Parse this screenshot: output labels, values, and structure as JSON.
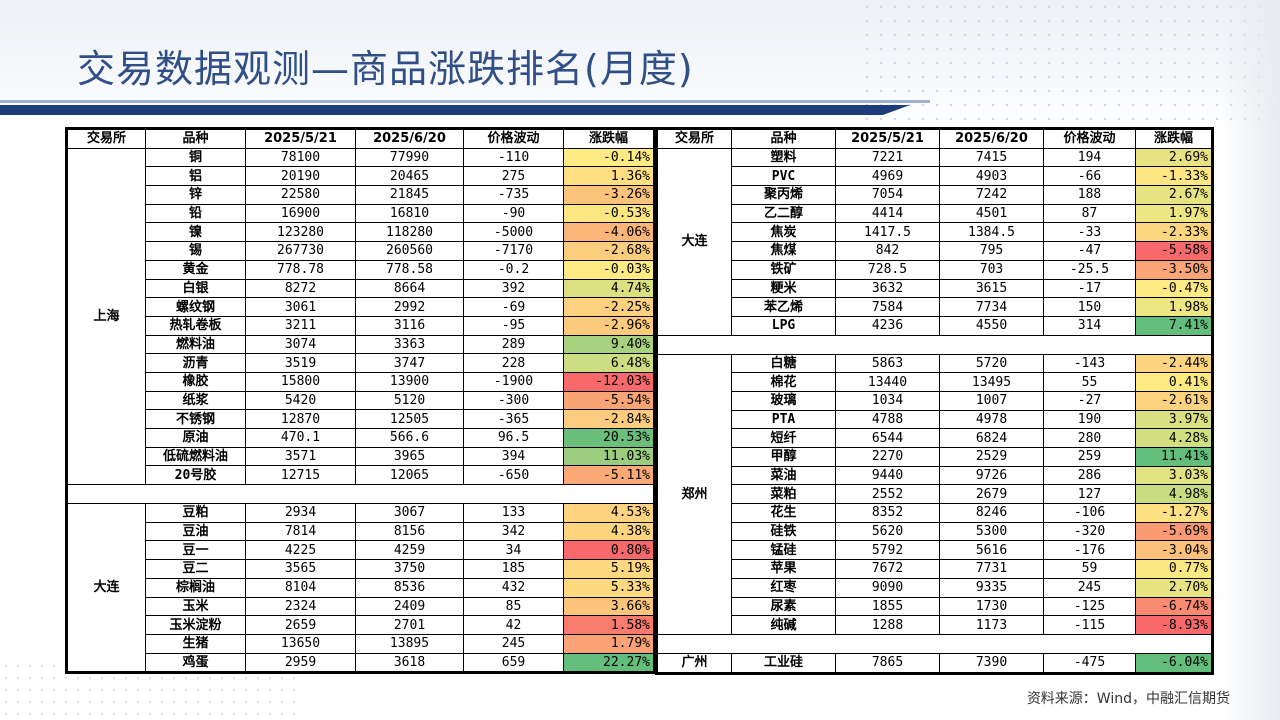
{
  "title": "交易数据观测—商品涨跌排名(月度)",
  "source": "资料来源：Wind，中融汇信期货",
  "headers": [
    "交易所",
    "品种",
    "2025/5/21",
    "2025/6/20",
    "价格波动",
    "涨跌幅"
  ],
  "left": [
    {
      "exchange": "上海",
      "rows": [
        {
          "name": "铜",
          "p1": "78100",
          "p2": "77990",
          "chg": "-110",
          "pct": "-0.14%",
          "color": "#ffeb84"
        },
        {
          "name": "铝",
          "p1": "20190",
          "p2": "20465",
          "chg": "275",
          "pct": "1.36%",
          "color": "#ffdf81"
        },
        {
          "name": "锌",
          "p1": "22580",
          "p2": "21845",
          "chg": "-735",
          "pct": "-3.26%",
          "color": "#fcc47b"
        },
        {
          "name": "铅",
          "p1": "16900",
          "p2": "16810",
          "chg": "-90",
          "pct": "-0.53%",
          "color": "#fee683"
        },
        {
          "name": "镍",
          "p1": "123280",
          "p2": "118280",
          "chg": "-5000",
          "pct": "-4.06%",
          "color": "#fbb578"
        },
        {
          "name": "锡",
          "p1": "267730",
          "p2": "260560",
          "chg": "-7170",
          "pct": "-2.68%",
          "color": "#fdcd7e"
        },
        {
          "name": "黄金",
          "p1": "778.78",
          "p2": "778.58",
          "chg": "-0.2",
          "pct": "-0.03%",
          "color": "#ffeb84"
        },
        {
          "name": "白银",
          "p1": "8272",
          "p2": "8664",
          "chg": "392",
          "pct": "4.74%",
          "color": "#dbe081"
        },
        {
          "name": "螺纹钢",
          "p1": "3061",
          "p2": "2992",
          "chg": "-69",
          "pct": "-2.25%",
          "color": "#fdd17f"
        },
        {
          "name": "热轧卷板",
          "p1": "3211",
          "p2": "3116",
          "chg": "-95",
          "pct": "-2.96%",
          "color": "#fcca7d"
        },
        {
          "name": "燃料油",
          "p1": "3074",
          "p2": "3363",
          "chg": "289",
          "pct": "9.40%",
          "color": "#a8d27f"
        },
        {
          "name": "沥青",
          "p1": "3519",
          "p2": "3747",
          "chg": "228",
          "pct": "6.48%",
          "color": "#cddd82"
        },
        {
          "name": "橡胶",
          "p1": "15800",
          "p2": "13900",
          "chg": "-1900",
          "pct": "-12.03%",
          "color": "#f8696b"
        },
        {
          "name": "纸浆",
          "p1": "5420",
          "p2": "5120",
          "chg": "-300",
          "pct": "-5.54%",
          "color": "#f9a474"
        },
        {
          "name": "不锈钢",
          "p1": "12870",
          "p2": "12505",
          "chg": "-365",
          "pct": "-2.84%",
          "color": "#fdcc7e"
        },
        {
          "name": "原油",
          "p1": "470.1",
          "p2": "566.6",
          "chg": "96.5",
          "pct": "20.53%",
          "color": "#6cbe7b"
        },
        {
          "name": "低硫燃料油",
          "p1": "3571",
          "p2": "3965",
          "chg": "394",
          "pct": "11.03%",
          "color": "#9ccd7e"
        },
        {
          "name": "20号胶",
          "p1": "12715",
          "p2": "12065",
          "chg": "-650",
          "pct": "-5.11%",
          "color": "#faa875"
        }
      ]
    },
    {
      "exchange": "大连",
      "rows": [
        {
          "name": "豆粕",
          "p1": "2934",
          "p2": "3067",
          "chg": "133",
          "pct": "4.53%",
          "color": "#ffd37f"
        },
        {
          "name": "豆油",
          "p1": "7814",
          "p2": "8156",
          "chg": "342",
          "pct": "4.38%",
          "color": "#ffd47f"
        },
        {
          "name": "豆一",
          "p1": "4225",
          "p2": "4259",
          "chg": "34",
          "pct": "0.80%",
          "color": "#f8696b"
        },
        {
          "name": "豆二",
          "p1": "3565",
          "p2": "3750",
          "chg": "185",
          "pct": "5.19%",
          "color": "#ffd880"
        },
        {
          "name": "棕榈油",
          "p1": "8104",
          "p2": "8536",
          "chg": "432",
          "pct": "5.33%",
          "color": "#ffd980"
        },
        {
          "name": "玉米",
          "p1": "2324",
          "p2": "2409",
          "chg": "85",
          "pct": "3.66%",
          "color": "#fdc57c"
        },
        {
          "name": "玉米淀粉",
          "p1": "2659",
          "p2": "2701",
          "chg": "42",
          "pct": "1.58%",
          "color": "#f87b6e"
        },
        {
          "name": "生猪",
          "p1": "13650",
          "p2": "13895",
          "chg": "245",
          "pct": "1.79%",
          "color": "#fba376"
        },
        {
          "name": "鸡蛋",
          "p1": "2959",
          "p2": "3618",
          "chg": "659",
          "pct": "22.27%",
          "color": "#63be7b"
        }
      ]
    }
  ],
  "right": [
    {
      "exchange": "大连",
      "rows": [
        {
          "name": "塑料",
          "p1": "7221",
          "p2": "7415",
          "chg": "194",
          "pct": "2.69%",
          "color": "#e7e382"
        },
        {
          "name": "PVC",
          "p1": "4969",
          "p2": "4903",
          "chg": "-66",
          "pct": "-1.33%",
          "color": "#fde683"
        },
        {
          "name": "聚丙烯",
          "p1": "7054",
          "p2": "7242",
          "chg": "188",
          "pct": "2.67%",
          "color": "#e7e382"
        },
        {
          "name": "乙二醇",
          "p1": "4414",
          "p2": "4501",
          "chg": "87",
          "pct": "1.97%",
          "color": "#eee583"
        },
        {
          "name": "焦炭",
          "p1": "1417.5",
          "p2": "1384.5",
          "chg": "-33",
          "pct": "-2.33%",
          "color": "#fcd57f"
        },
        {
          "name": "焦煤",
          "p1": "842",
          "p2": "795",
          "chg": "-47",
          "pct": "-5.58%",
          "color": "#f8696b"
        },
        {
          "name": "铁矿",
          "p1": "728.5",
          "p2": "703",
          "chg": "-25.5",
          "pct": "-3.50%",
          "color": "#fba576"
        },
        {
          "name": "粳米",
          "p1": "3632",
          "p2": "3615",
          "chg": "-17",
          "pct": "-0.47%",
          "color": "#ffeb84"
        },
        {
          "name": "苯乙烯",
          "p1": "7584",
          "p2": "7734",
          "chg": "150",
          "pct": "1.98%",
          "color": "#eee583"
        },
        {
          "name": "LPG",
          "p1": "4236",
          "p2": "4550",
          "chg": "314",
          "pct": "7.41%",
          "color": "#63be7b"
        }
      ]
    },
    {
      "exchange": "郑州",
      "rows": [
        {
          "name": "白糖",
          "p1": "5863",
          "p2": "5720",
          "chg": "-143",
          "pct": "-2.44%",
          "color": "#fdd580"
        },
        {
          "name": "棉花",
          "p1": "13440",
          "p2": "13495",
          "chg": "55",
          "pct": "0.41%",
          "color": "#ffe983"
        },
        {
          "name": "玻璃",
          "p1": "1034",
          "p2": "1007",
          "chg": "-27",
          "pct": "-2.61%",
          "color": "#fdd27f"
        },
        {
          "name": "PTA",
          "p1": "4788",
          "p2": "4978",
          "chg": "190",
          "pct": "3.97%",
          "color": "#d8e081"
        },
        {
          "name": "短纤",
          "p1": "6544",
          "p2": "6824",
          "chg": "280",
          "pct": "4.28%",
          "color": "#d2df81"
        },
        {
          "name": "甲醇",
          "p1": "2270",
          "p2": "2529",
          "chg": "259",
          "pct": "11.41%",
          "color": "#63be7b"
        },
        {
          "name": "菜油",
          "p1": "9440",
          "p2": "9726",
          "chg": "286",
          "pct": "3.03%",
          "color": "#e1e282"
        },
        {
          "name": "菜粕",
          "p1": "2552",
          "p2": "2679",
          "chg": "127",
          "pct": "4.98%",
          "color": "#c8dc81"
        },
        {
          "name": "花生",
          "p1": "8352",
          "p2": "8246",
          "chg": "-106",
          "pct": "-1.27%",
          "color": "#fee182"
        },
        {
          "name": "硅铁",
          "p1": "5620",
          "p2": "5300",
          "chg": "-320",
          "pct": "-5.69%",
          "color": "#f99a73"
        },
        {
          "name": "锰硅",
          "p1": "5792",
          "p2": "5616",
          "chg": "-176",
          "pct": "-3.04%",
          "color": "#fcc17b"
        },
        {
          "name": "苹果",
          "p1": "7672",
          "p2": "7731",
          "chg": "59",
          "pct": "0.77%",
          "color": "#fbe883"
        },
        {
          "name": "红枣",
          "p1": "9090",
          "p2": "9335",
          "chg": "245",
          "pct": "2.70%",
          "color": "#e8e482"
        },
        {
          "name": "尿素",
          "p1": "1855",
          "p2": "1730",
          "chg": "-125",
          "pct": "-6.74%",
          "color": "#f98b71"
        },
        {
          "name": "纯碱",
          "p1": "1288",
          "p2": "1173",
          "chg": "-115",
          "pct": "-8.93%",
          "color": "#f8696b"
        }
      ]
    },
    {
      "exchange": "广州",
      "rows": [
        {
          "name": "工业硅",
          "p1": "7865",
          "p2": "7390",
          "chg": "-475",
          "pct": "-6.04%",
          "color": "#63be7b"
        }
      ]
    }
  ]
}
